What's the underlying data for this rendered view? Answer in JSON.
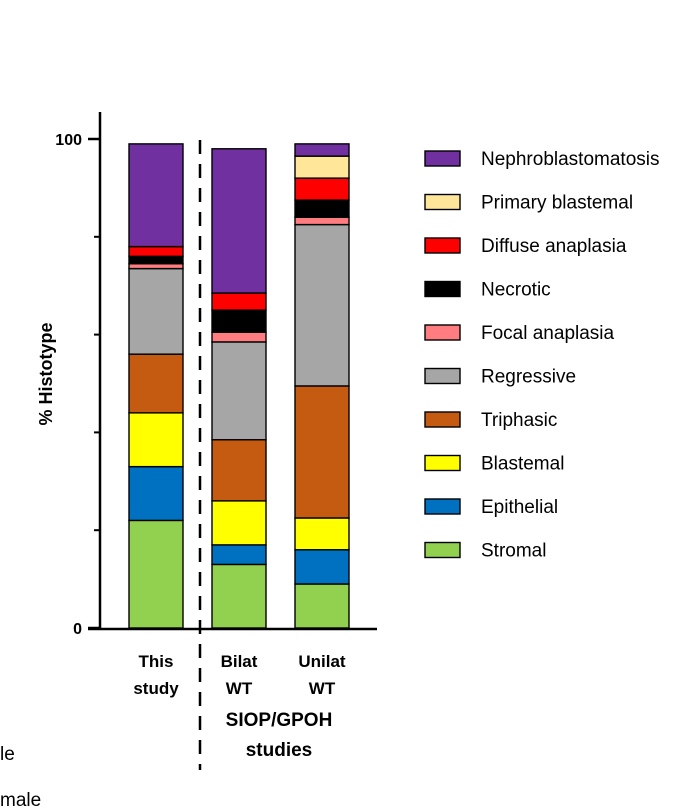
{
  "chart_data": {
    "type": "bar",
    "stacked": true,
    "ylabel": "% Histotype",
    "ylim": [
      0,
      100
    ],
    "yticks": [
      0,
      100
    ],
    "categories": [
      [
        "This",
        "study"
      ],
      [
        "Bilat",
        "WT"
      ],
      [
        "Unilat",
        "WT"
      ]
    ],
    "group_label": [
      "SIOP/GPOH",
      "studies"
    ],
    "series": [
      {
        "name": "Stromal",
        "color": "#92d050",
        "values": [
          22,
          13,
          9
        ]
      },
      {
        "name": "Epithelial",
        "color": "#0070c0",
        "values": [
          11,
          4,
          7
        ]
      },
      {
        "name": "Blastemal",
        "color": "#ffff00",
        "values": [
          11,
          9,
          6.5
        ]
      },
      {
        "name": "Triphasic",
        "color": "#c55a11",
        "values": [
          12,
          12.5,
          27
        ]
      },
      {
        "name": "Regressive",
        "color": "#a6a6a6",
        "values": [
          17.5,
          20,
          33
        ]
      },
      {
        "name": "Focal anaplasia",
        "color": "#ff7c80",
        "values": [
          1,
          2,
          1.5
        ]
      },
      {
        "name": "Necrotic",
        "color": "#000000",
        "values": [
          1.5,
          4.5,
          3.5
        ]
      },
      {
        "name": "Diffuse anaplasia",
        "color": "#ff0000",
        "values": [
          2,
          3.5,
          4.5
        ]
      },
      {
        "name": "Primary blastemal",
        "color": "#ffe699",
        "values": [
          0,
          0,
          4.5
        ]
      },
      {
        "name": "Nephroblastomatosis",
        "color": "#7030a0",
        "values": [
          21,
          29.5,
          2.5
        ]
      }
    ],
    "legend_order": [
      "Nephroblastomatosis",
      "Primary blastemal",
      "Diffuse anaplasia",
      "Necrotic",
      "Focal anaplasia",
      "Regressive",
      "Triphasic",
      "Blastemal",
      "Epithelial",
      "Stromal"
    ],
    "legend_position": "right"
  },
  "stray_text": [
    "le",
    "male"
  ]
}
